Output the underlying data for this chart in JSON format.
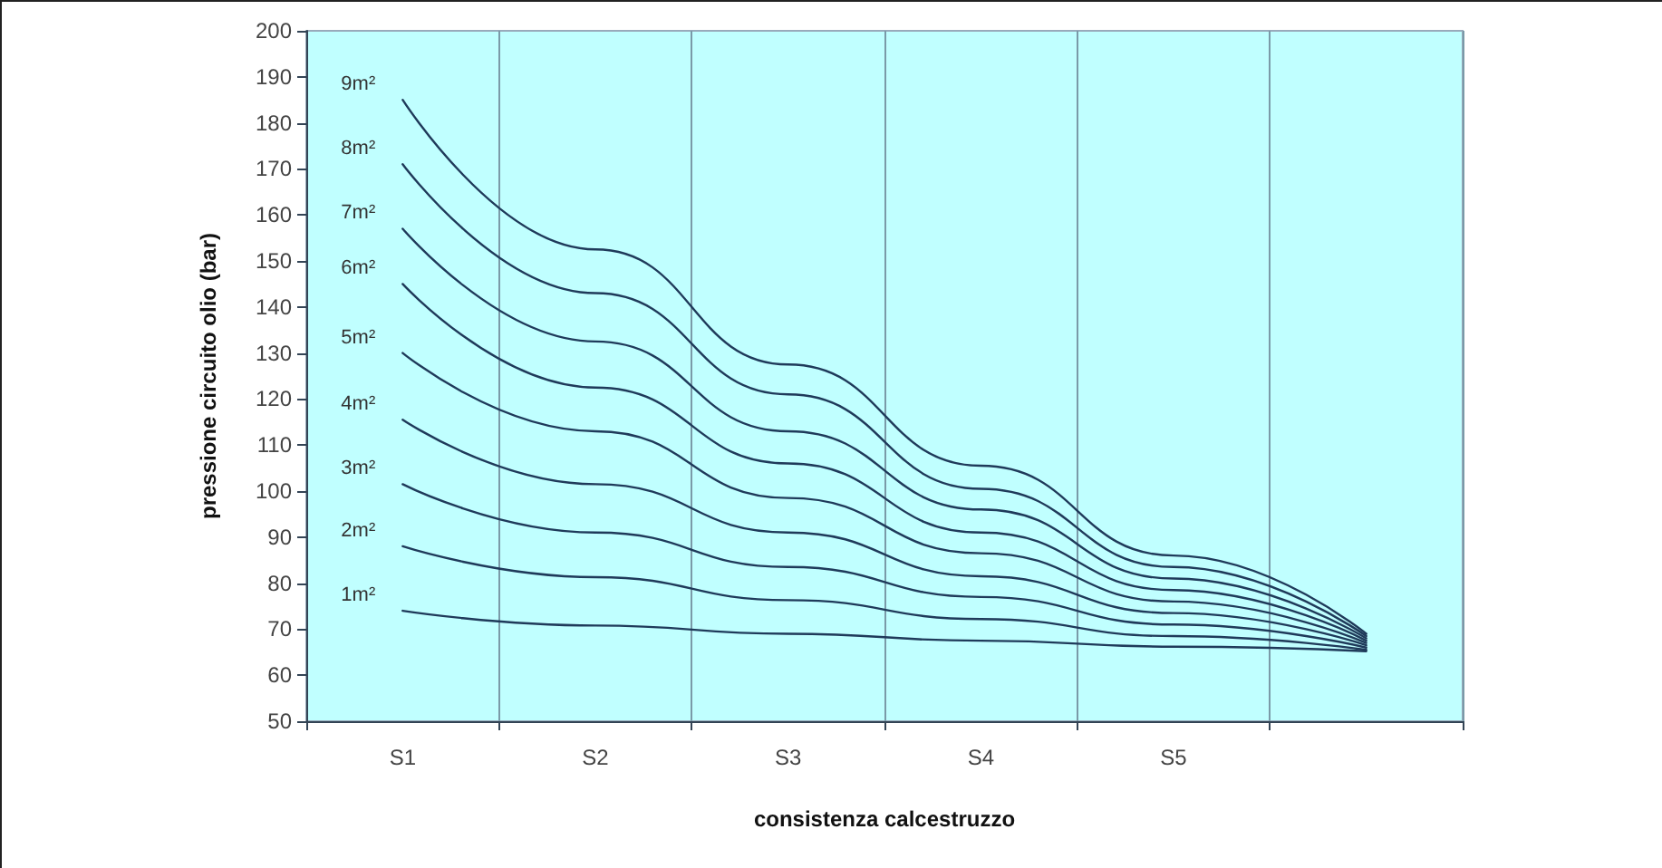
{
  "chart_data": {
    "type": "line",
    "xlabel": "consistenza calcestruzzo",
    "ylabel": "pressione circuito olio (bar)",
    "categories": [
      "S1",
      "S2",
      "S3",
      "S4",
      "S5",
      null
    ],
    "ylim": [
      50,
      200
    ],
    "yticks": [
      50,
      60,
      70,
      80,
      90,
      100,
      110,
      120,
      130,
      140,
      150,
      160,
      170,
      180,
      190,
      200
    ],
    "grid": "x",
    "legend": false,
    "marker": "none",
    "line_style": "solid",
    "series": [
      {
        "name": "9m²",
        "color": "#1f3a5a",
        "values": [
          185,
          152.5,
          127.5,
          105.5,
          86,
          69
        ]
      },
      {
        "name": "8m²",
        "color": "#1f3a5a",
        "values": [
          171,
          143,
          121,
          100.5,
          83.5,
          68.5
        ]
      },
      {
        "name": "7m²",
        "color": "#1f3a5a",
        "values": [
          157,
          132.5,
          113,
          96,
          81,
          68
        ]
      },
      {
        "name": "6m²",
        "color": "#1f3a5a",
        "values": [
          145,
          122.5,
          106,
          91,
          78.5,
          67.5
        ]
      },
      {
        "name": "5m²",
        "color": "#1f3a5a",
        "values": [
          130,
          113,
          98.5,
          86.5,
          76,
          67
        ]
      },
      {
        "name": "4m²",
        "color": "#1f3a5a",
        "values": [
          115.5,
          101.5,
          91,
          81.5,
          73.5,
          66.5
        ]
      },
      {
        "name": "3m²",
        "color": "#1f3a5a",
        "values": [
          101.5,
          91,
          83.5,
          77,
          71,
          66
        ]
      },
      {
        "name": "2m²",
        "color": "#1f3a5a",
        "values": [
          88,
          81.3,
          76.3,
          72.2,
          68.5,
          65.5
        ]
      },
      {
        "name": "1m²",
        "color": "#1f3a5a",
        "values": [
          74,
          70.8,
          69,
          67.5,
          66.2,
          65.2
        ]
      }
    ]
  }
}
